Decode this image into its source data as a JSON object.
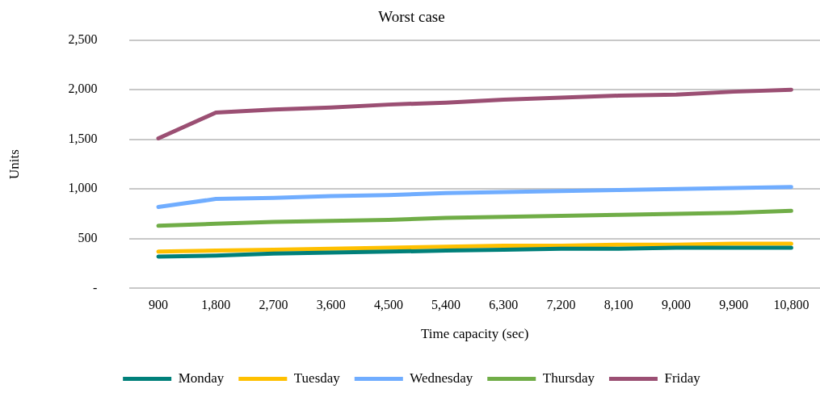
{
  "chart_data": {
    "type": "line",
    "title": "Worst case",
    "xlabel": "Time capacity (sec)",
    "ylabel": "Units",
    "categories": [
      "900",
      "1,800",
      "2,700",
      "3,600",
      "4,500",
      "5,400",
      "6,300",
      "7,200",
      "8,100",
      "9,000",
      "9,900",
      "10,800"
    ],
    "series": [
      {
        "name": "Monday",
        "color": "#00807a",
        "values": [
          320,
          330,
          350,
          360,
          370,
          380,
          390,
          400,
          400,
          410,
          410,
          410
        ]
      },
      {
        "name": "Tuesday",
        "color": "#ffc000",
        "values": [
          370,
          380,
          390,
          400,
          410,
          420,
          430,
          430,
          440,
          440,
          450,
          450
        ]
      },
      {
        "name": "Wednesday",
        "color": "#70adff",
        "values": [
          820,
          900,
          910,
          930,
          940,
          960,
          970,
          980,
          990,
          1000,
          1010,
          1020
        ]
      },
      {
        "name": "Thursday",
        "color": "#70ad47",
        "values": [
          630,
          650,
          670,
          680,
          690,
          710,
          720,
          730,
          740,
          750,
          760,
          780
        ]
      },
      {
        "name": "Friday",
        "color": "#9b4f73",
        "values": [
          1510,
          1770,
          1800,
          1820,
          1850,
          1870,
          1900,
          1920,
          1940,
          1950,
          1980,
          2000
        ]
      }
    ],
    "ylim": [
      0,
      2500
    ],
    "yticks": [
      {
        "value": 0,
        "label": "-"
      },
      500,
      {
        "value": 1000,
        "label": "1,000"
      },
      {
        "value": 1500,
        "label": "1,500"
      },
      {
        "value": 2000,
        "label": "2,000"
      },
      {
        "value": 2500,
        "label": "2,500"
      }
    ],
    "grid": "y",
    "legend": "bottom",
    "marker": "none",
    "line_style": "solid"
  }
}
